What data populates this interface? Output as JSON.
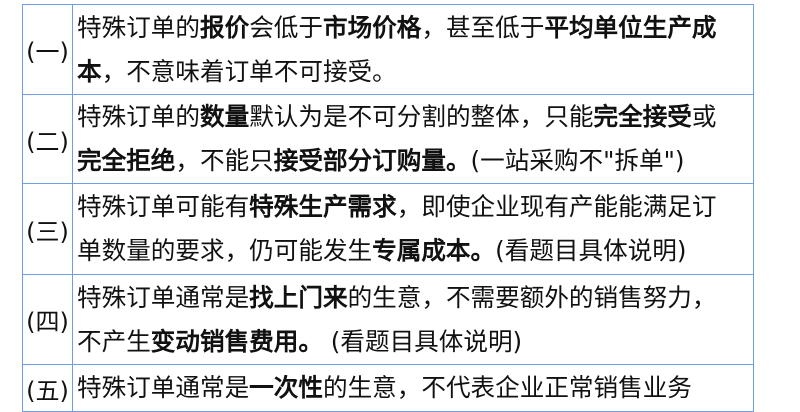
{
  "rows": [
    {
      "num": "(一)",
      "lines": [
        [
          {
            "t": "特殊订单的"
          },
          {
            "t": "报价",
            "b": true
          },
          {
            "t": "会低于"
          },
          {
            "t": "市场价格",
            "b": true
          },
          {
            "t": "，甚至低于"
          },
          {
            "t": "平均单位生产成",
            "b": true
          }
        ],
        [
          {
            "t": "本",
            "b": true
          },
          {
            "t": "，不意味着订单不可接受。"
          }
        ]
      ]
    },
    {
      "num": "(二)",
      "lines": [
        [
          {
            "t": "特殊订单的"
          },
          {
            "t": "数量",
            "b": true
          },
          {
            "t": "默认为是不可分割的整体，只能"
          },
          {
            "t": "完全接受",
            "b": true
          },
          {
            "t": "或"
          }
        ],
        [
          {
            "t": "完全拒绝",
            "b": true
          },
          {
            "t": "，不能只"
          },
          {
            "t": "接受部分订购量。",
            "b": true
          },
          {
            "t": "(一站采购不\"拆单\")"
          }
        ]
      ]
    },
    {
      "num": "(三)",
      "lines": [
        [
          {
            "t": "特殊订单可能有"
          },
          {
            "t": "特殊生产需求",
            "b": true
          },
          {
            "t": "，即使企业现有产能能满足订"
          }
        ],
        [
          {
            "t": "单数量的要求，仍可能发生"
          },
          {
            "t": "专属成本。",
            "b": true
          },
          {
            "t": "(看题目具体说明)"
          }
        ]
      ]
    },
    {
      "num": "(四)",
      "lines": [
        [
          {
            "t": "特殊订单通常是"
          },
          {
            "t": "找上门来",
            "b": true
          },
          {
            "t": "的生意，不需要额外的销售努力，"
          }
        ],
        [
          {
            "t": "不产生"
          },
          {
            "t": "变动销售费用。",
            "b": true
          },
          {
            "t": " (看题目具体说明)"
          }
        ]
      ]
    },
    {
      "num": "(五)",
      "lines": [
        [
          {
            "t": "特殊订单通常是"
          },
          {
            "t": "一次性",
            "b": true
          },
          {
            "t": "的生意，不代表企业正常销售业务"
          }
        ]
      ]
    }
  ],
  "colors": {
    "border": "#6f9ee8"
  }
}
